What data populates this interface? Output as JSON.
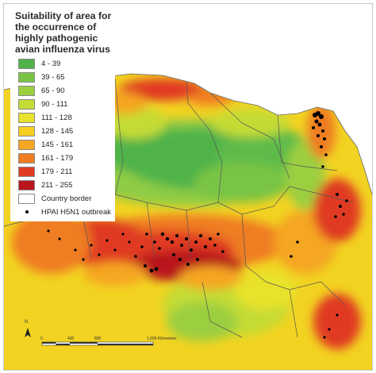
{
  "legend": {
    "title_lines": [
      "Suitability of area for",
      "the occurrence of",
      "highly pathogenic",
      "avian influenza virus"
    ],
    "classes": [
      {
        "label": "4 - 39",
        "color": "#4fb34a"
      },
      {
        "label": "39 - 65",
        "color": "#79c445"
      },
      {
        "label": "65 - 90",
        "color": "#9ccf3f"
      },
      {
        "label": "90 - 111",
        "color": "#c5db36"
      },
      {
        "label": "111 - 128",
        "color": "#e8e22c"
      },
      {
        "label": "128 - 145",
        "color": "#f6cf1f"
      },
      {
        "label": "145 - 161",
        "color": "#f5a623"
      },
      {
        "label": "161 - 179",
        "color": "#ef7d22"
      },
      {
        "label": "179 - 211",
        "color": "#e03a22"
      },
      {
        "label": "211 - 255",
        "color": "#b8141c"
      }
    ],
    "country_border_label": "Country border",
    "outbreak_label": "HPAI H5N1 outbreak"
  },
  "scale_bar": {
    "ticks": [
      "0",
      "400",
      "800",
      "1,600 Kilometers"
    ]
  },
  "north_arrow": {
    "label": "N"
  }
}
